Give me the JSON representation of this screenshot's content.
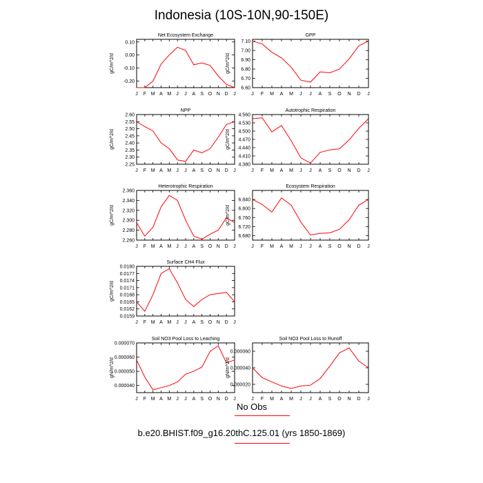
{
  "title": "Indonesia (10S-10N,90-150E)",
  "legend": {
    "obs_label": "No Obs",
    "case_label": "b.e20.BHIST.f09_g16.20thC.125.01 (yrs 1850-1869)",
    "line_color": "#ff0000"
  },
  "months": [
    "J",
    "F",
    "M",
    "A",
    "M",
    "J",
    "J",
    "A",
    "S",
    "O",
    "N",
    "D",
    "J"
  ],
  "chart_data": [
    {
      "type": "line",
      "title": "Net Ecosystem Exchange",
      "ylabel": "gC/m^2/d",
      "ylim": [
        -0.25,
        0.12
      ],
      "yticks": [
        0.1,
        0.0,
        -0.1,
        -0.2
      ],
      "ytick_labels": [
        "0.10",
        "0.00",
        "-0.10",
        "-0.20"
      ],
      "values": [
        -0.25,
        -0.25,
        -0.2,
        -0.07,
        0.0,
        0.06,
        0.035,
        -0.075,
        -0.06,
        -0.08,
        -0.16,
        -0.225,
        -0.25
      ]
    },
    {
      "type": "line",
      "title": "GPP",
      "ylabel": "gC/m^2/d",
      "ylim": [
        6.6,
        7.12
      ],
      "yticks": [
        7.1,
        7.0,
        6.9,
        6.8,
        6.7,
        6.6
      ],
      "ytick_labels": [
        "7.10",
        "7.00",
        "6.90",
        "6.80",
        "6.70",
        "6.60"
      ],
      "values": [
        7.1,
        7.07,
        6.98,
        6.92,
        6.82,
        6.68,
        6.66,
        6.77,
        6.76,
        6.8,
        6.91,
        7.05,
        7.1
      ]
    },
    {
      "type": "line",
      "title": "NPP",
      "ylabel": "gC/m^2/d",
      "ylim": [
        2.25,
        2.6
      ],
      "yticks": [
        2.6,
        2.55,
        2.5,
        2.45,
        2.4,
        2.35,
        2.3,
        2.25
      ],
      "ytick_labels": [
        "2.60",
        "2.55",
        "2.50",
        "2.45",
        "2.40",
        "2.35",
        "2.30",
        "2.25"
      ],
      "values": [
        2.55,
        2.515,
        2.485,
        2.4,
        2.36,
        2.28,
        2.27,
        2.35,
        2.33,
        2.36,
        2.44,
        2.53,
        2.55
      ]
    },
    {
      "type": "line",
      "title": "Autotrophic Respiration",
      "ylabel": "gC/m^2/d",
      "ylim": [
        4.38,
        4.56
      ],
      "yticks": [
        4.56,
        4.53,
        4.5,
        4.47,
        4.44,
        4.41,
        4.38
      ],
      "ytick_labels": [
        "4.560",
        "4.530",
        "4.500",
        "4.470",
        "4.440",
        "4.410",
        "4.380"
      ],
      "values": [
        4.545,
        4.548,
        4.497,
        4.52,
        4.465,
        4.403,
        4.384,
        4.423,
        4.432,
        4.436,
        4.468,
        4.51,
        4.545
      ]
    },
    {
      "type": "line",
      "title": "Heterotrophic Respiration",
      "ylabel": "gC/m^2/d",
      "ylim": [
        2.26,
        2.36
      ],
      "yticks": [
        2.36,
        2.34,
        2.32,
        2.3,
        2.28,
        2.26
      ],
      "ytick_labels": [
        "2.360",
        "2.340",
        "2.320",
        "2.300",
        "2.280",
        "2.260"
      ],
      "values": [
        2.295,
        2.268,
        2.286,
        2.327,
        2.35,
        2.34,
        2.3,
        2.268,
        2.262,
        2.272,
        2.28,
        2.305,
        2.295
      ]
    },
    {
      "type": "line",
      "title": "Ecosystem Respiration",
      "ylabel": "gC/m^2/d",
      "ylim": [
        6.66,
        6.88
      ],
      "yticks": [
        6.84,
        6.8,
        6.76,
        6.72,
        6.68
      ],
      "ytick_labels": [
        "6.840",
        "6.800",
        "6.760",
        "6.720",
        "6.680"
      ],
      "values": [
        6.84,
        6.818,
        6.784,
        6.847,
        6.815,
        6.74,
        6.683,
        6.69,
        6.692,
        6.708,
        6.75,
        6.815,
        6.84
      ]
    },
    {
      "type": "line",
      "title": "Surface CH4 Flux",
      "ylabel": "gC/m^2/d",
      "ylim": [
        0.0159,
        0.018
      ],
      "yticks": [
        0.018,
        0.0177,
        0.0174,
        0.0171,
        0.0168,
        0.0165,
        0.0162,
        0.0159
      ],
      "ytick_labels": [
        "0.0180",
        "0.0177",
        "0.0174",
        "0.0171",
        "0.0168",
        "0.0165",
        "0.0162",
        "0.0159"
      ],
      "values": [
        0.0165,
        0.0161,
        0.0168,
        0.0177,
        0.0179,
        0.0173,
        0.0166,
        0.0163,
        0.0166,
        0.0168,
        0.01685,
        0.0169,
        0.0165
      ]
    },
    {
      "type": "line",
      "title": "Soil NO3 Pool Loss to Leaching",
      "ylabel": "gN/m^2/d",
      "ylim": [
        3.5e-05,
        7e-05
      ],
      "yticks": [
        7e-05,
        6e-05,
        5e-05,
        4e-05
      ],
      "ytick_labels": [
        "0.000070",
        "0.000060",
        "0.000050",
        "0.000040"
      ],
      "values": [
        5.8e-05,
        4.6e-05,
        3.7e-05,
        3.85e-05,
        4e-05,
        4.25e-05,
        4.8e-05,
        5e-05,
        5.3e-05,
        6.4e-05,
        6.8e-05,
        5.6e-05,
        5.8e-05
      ]
    },
    {
      "type": "line",
      "title": "Soil NO3 Pool Loss to Runoff",
      "ylabel": "gN/m^2/d",
      "ylim": [
        1e-05,
        7e-05
      ],
      "yticks": [
        6e-05,
        4e-05,
        2e-05
      ],
      "ytick_labels": [
        "0.000060",
        "0.000040",
        "0.000020"
      ],
      "values": [
        4e-05,
        2.8e-05,
        2.3e-05,
        1.8e-05,
        1.5e-05,
        1.8e-05,
        1.9e-05,
        2.7e-05,
        4.2e-05,
        5.8e-05,
        6.4e-05,
        4.8e-05,
        4e-05
      ]
    }
  ]
}
